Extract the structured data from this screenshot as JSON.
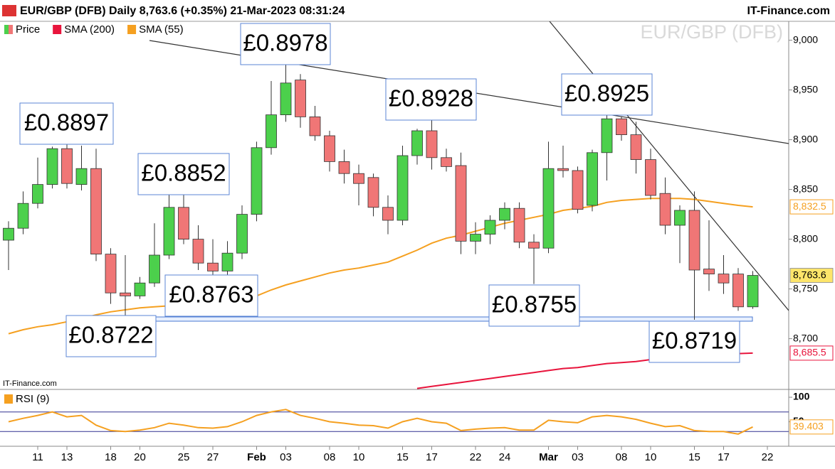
{
  "chart_data": [
    {
      "type": "candlestick",
      "title": "EUR/GBP (DFB) Daily 8,763.6 (+0.35%) 21-Mar-2023 08:31:24",
      "source": "IT-Finance.com",
      "watermark": "EUR/GBP (DFB)",
      "credit": "IT-Finance.com",
      "categories": [
        null,
        null,
        "11",
        null,
        "13",
        null,
        null,
        "18",
        null,
        "20",
        null,
        null,
        "25",
        null,
        "27",
        null,
        null,
        "Feb",
        null,
        "03",
        null,
        null,
        "08",
        null,
        "10",
        null,
        null,
        "15",
        null,
        "17",
        null,
        null,
        "22",
        null,
        "24",
        null,
        null,
        "Mar",
        null,
        "03",
        null,
        null,
        "08",
        null,
        "10",
        null,
        null,
        "15",
        null,
        "17",
        null,
        null,
        "22"
      ],
      "ylim": [
        8649,
        9019
      ],
      "yticks": [
        {
          "value": 8700,
          "label": "8,700"
        },
        {
          "value": 8750,
          "label": "8,750"
        },
        {
          "value": 8800,
          "label": "8,800"
        },
        {
          "value": 8850,
          "label": "8,850"
        },
        {
          "value": 8900,
          "label": "8,900"
        },
        {
          "value": 8950,
          "label": "8,950"
        },
        {
          "value": 9000,
          "label": "9,000"
        }
      ],
      "series": [
        {
          "name": "Price",
          "type": "candlestick",
          "up_color": "#4cd04c",
          "down_color": "#f07676",
          "last_label": "8,763.6",
          "open": [
            8799,
            8811,
            8836,
            8855,
            8891,
            8855,
            8871,
            8785,
            8746,
            8743,
            8756,
            8784,
            8832,
            8800,
            8776,
            8768,
            8786,
            8825,
            8892,
            8925,
            8960,
            8923,
            8904,
            8878,
            8866,
            8862,
            8832,
            8819,
            8884,
            8909,
            8882,
            8874,
            8798,
            8805,
            8819,
            8831,
            8797,
            8791,
            8871,
            8869,
            8834,
            8887,
            8921,
            8905,
            8880,
            8846,
            8814,
            8829,
            8770,
            8765,
            8765,
            8732,
            null
          ],
          "high": [
            8818,
            8848,
            8882,
            8893,
            8897,
            8894,
            8891,
            8791,
            8784,
            8762,
            8816,
            8851,
            8852,
            8814,
            8800,
            8798,
            8834,
            8898,
            8959,
            8978,
            8966,
            8934,
            8909,
            8890,
            8875,
            8866,
            8844,
            8894,
            8911,
            8928,
            8891,
            8887,
            8817,
            8824,
            8837,
            8837,
            8805,
            8898,
            8894,
            8873,
            8890,
            8925,
            8923,
            8918,
            8891,
            8862,
            8834,
            8848,
            8819,
            8784,
            8771,
            8768,
            null
          ],
          "low": [
            8769,
            8805,
            8831,
            8851,
            8851,
            8849,
            8778,
            8735,
            8722,
            8740,
            8752,
            8780,
            8795,
            8769,
            8763,
            8763,
            8780,
            8818,
            8885,
            8918,
            8912,
            8899,
            8868,
            8856,
            8834,
            8823,
            8805,
            8814,
            8875,
            8870,
            8868,
            8785,
            8785,
            8795,
            8810,
            8791,
            8755,
            8786,
            8862,
            8826,
            8828,
            8859,
            8899,
            8866,
            8840,
            8805,
            8776,
            8719,
            8748,
            8745,
            8728,
            8730,
            null
          ],
          "close": [
            8811,
            8836,
            8855,
            8891,
            8856,
            8871,
            8785,
            8746,
            8743,
            8756,
            8784,
            8832,
            8800,
            8776,
            8768,
            8786,
            8825,
            8892,
            8925,
            8957,
            8923,
            8904,
            8878,
            8866,
            8856,
            8832,
            8819,
            8884,
            8909,
            8882,
            8873,
            8798,
            8805,
            8819,
            8831,
            8797,
            8791,
            8871,
            8869,
            8830,
            8887,
            8921,
            8905,
            8880,
            8844,
            8814,
            8829,
            8769,
            8765,
            8756,
            8732,
            8763.6,
            null
          ]
        },
        {
          "name": "SMA (200)",
          "type": "line",
          "color": "#e8143c",
          "last_label": "8,685.5",
          "values": [
            null,
            null,
            null,
            null,
            null,
            null,
            null,
            null,
            null,
            null,
            null,
            null,
            null,
            null,
            null,
            null,
            null,
            null,
            null,
            null,
            null,
            null,
            null,
            null,
            null,
            null,
            null,
            null,
            8650,
            8652,
            8654,
            8656,
            8658,
            8660,
            8662,
            8664,
            8666,
            8668,
            8670,
            8671,
            8673,
            8675,
            8676,
            8677,
            8679,
            8680,
            8681,
            8682,
            8683,
            8684,
            8685,
            8685.5,
            null
          ]
        },
        {
          "name": "SMA (55)",
          "type": "line",
          "color": "#f5a020",
          "last_label": "8,832.5",
          "values": [
            8705,
            8709,
            8712,
            8714,
            8717,
            8720,
            8724,
            8727,
            8729,
            8731,
            8732,
            8733,
            8734,
            8734,
            8735,
            8737,
            8739,
            8743,
            8749,
            8754,
            8758,
            8762,
            8766,
            8769,
            8771,
            8774,
            8777,
            8783,
            8789,
            8796,
            8801,
            8804,
            8808,
            8812,
            8816,
            8819,
            8822,
            8825,
            8829,
            8831,
            8833,
            8837,
            8839,
            8840,
            8841,
            8841,
            8841,
            8840,
            8838,
            8836,
            8834,
            8832.5,
            null
          ]
        }
      ],
      "annotations": [
        "£0.8978",
        "£0.8897",
        "£0.8852",
        "£0.8928",
        "£0.8925",
        "£0.8763",
        "£0.8722",
        "£0.8755",
        "£0.8719"
      ]
    },
    {
      "type": "line",
      "ylim": [
        0,
        116
      ],
      "yticks": [
        50,
        100
      ],
      "levels": [
        30,
        70
      ],
      "series": [
        {
          "name": "RSI (9)",
          "color": "#f5a020",
          "last_label": "39.403",
          "values": [
            50,
            57,
            63,
            70,
            60,
            63,
            43,
            32,
            30,
            33,
            38,
            47,
            43,
            38,
            37,
            40,
            50,
            63,
            70,
            75,
            63,
            57,
            50,
            47,
            43,
            42,
            37,
            50,
            57,
            50,
            47,
            32,
            35,
            37,
            38,
            33,
            33,
            53,
            50,
            48,
            60,
            63,
            60,
            55,
            47,
            40,
            42,
            32,
            30,
            30,
            25,
            39.403,
            null
          ]
        }
      ]
    }
  ]
}
